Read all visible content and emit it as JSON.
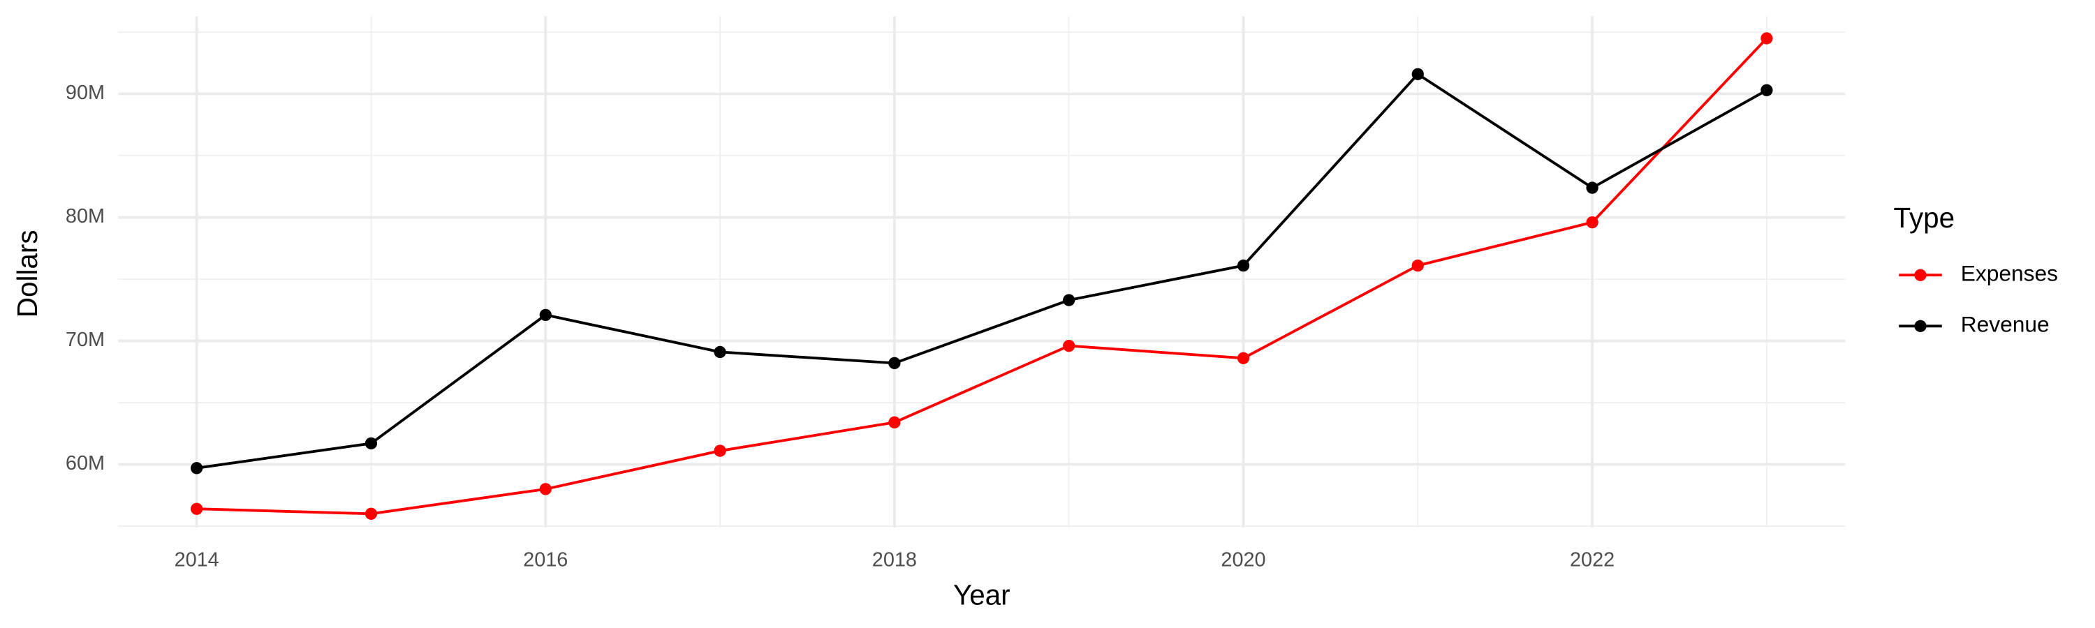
{
  "chart_data": {
    "type": "line",
    "x_label": "Year",
    "y_label": "Dollars",
    "x": [
      2014,
      2015,
      2016,
      2017,
      2018,
      2019,
      2020,
      2021,
      2022,
      2023
    ],
    "series": [
      {
        "name": "Expenses",
        "color": "#ff0000",
        "values": [
          56400000,
          56000000,
          58000000,
          61100000,
          63400000,
          69600000,
          68600000,
          76100000,
          79600000,
          94500000
        ]
      },
      {
        "name": "Revenue",
        "color": "#000000",
        "values": [
          59700000,
          61700000,
          72100000,
          69100000,
          68200000,
          73300000,
          76100000,
          91600000,
          82400000,
          90300000
        ]
      }
    ],
    "xlim": [
      2013.55,
      2023.45
    ],
    "xticks": [
      2014,
      2016,
      2018,
      2020,
      2022
    ],
    "ylim": [
      54900000,
      96300000
    ],
    "yticks": [
      {
        "value": 60000000,
        "label": "60M"
      },
      {
        "value": 70000000,
        "label": "70M"
      },
      {
        "value": 80000000,
        "label": "80M"
      },
      {
        "value": 90000000,
        "label": "90M"
      }
    ],
    "grid": true,
    "legend_title": "Type",
    "legend_position": "right"
  }
}
